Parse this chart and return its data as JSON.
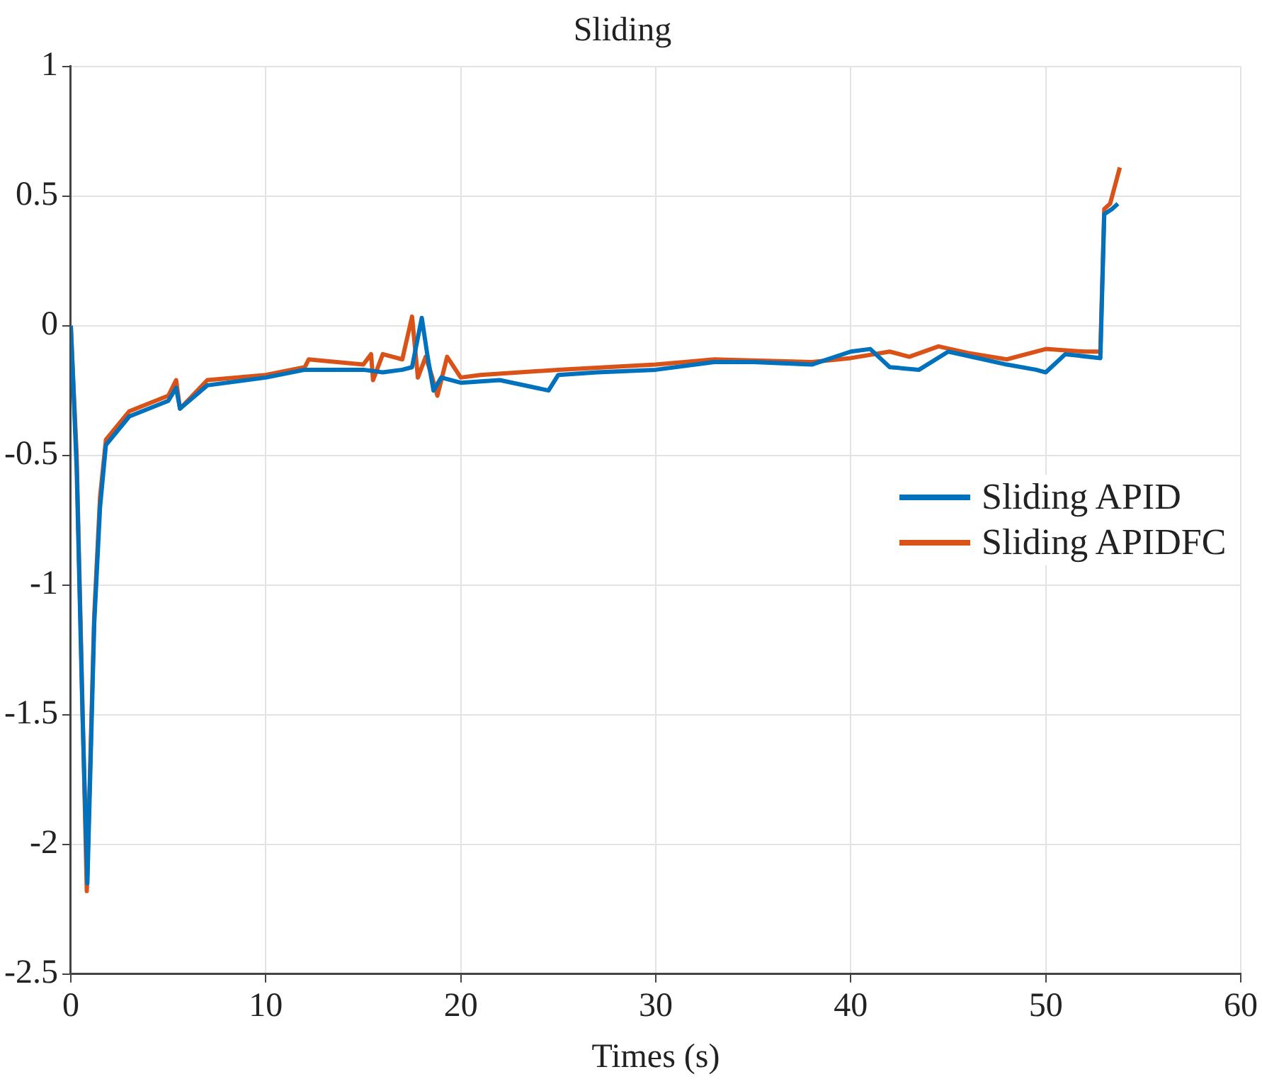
{
  "chart_data": {
    "type": "line",
    "title": "Sliding",
    "xlabel": "Times (s)",
    "xlim": [
      0,
      60
    ],
    "xticks": [
      0,
      10,
      20,
      30,
      40,
      50,
      60
    ],
    "ylim": [
      -2.5,
      1
    ],
    "yticks": [
      -2.5,
      -2,
      -1.5,
      -1,
      -0.5,
      0,
      0.5,
      1
    ],
    "grid": true,
    "legend": "right",
    "marker": "none",
    "line_style": "solid",
    "series": [
      {
        "name": "Sliding APID",
        "color": "#0072bd",
        "x": [
          0,
          0.3,
          0.6,
          0.85,
          1.2,
          1.5,
          1.8,
          3,
          5,
          5.4,
          5.6,
          7,
          10,
          12,
          15,
          16,
          17,
          17.5,
          18,
          18.3,
          18.6,
          19,
          20,
          22,
          24.5,
          25,
          27,
          30,
          33,
          35,
          38,
          40,
          41,
          42,
          43.5,
          45,
          48,
          49.5,
          50,
          51,
          52.8,
          53,
          53.4,
          53.7
        ],
        "values": [
          0,
          -0.55,
          -1.5,
          -2.15,
          -1.15,
          -0.7,
          -0.46,
          -0.35,
          -0.29,
          -0.24,
          -0.32,
          -0.23,
          -0.2,
          -0.17,
          -0.17,
          -0.18,
          -0.17,
          -0.16,
          0.03,
          -0.12,
          -0.25,
          -0.2,
          -0.22,
          -0.21,
          -0.25,
          -0.19,
          -0.18,
          -0.17,
          -0.14,
          -0.14,
          -0.15,
          -0.1,
          -0.09,
          -0.16,
          -0.17,
          -0.1,
          -0.15,
          -0.17,
          -0.18,
          -0.11,
          -0.125,
          0.43,
          0.45,
          0.47
        ]
      },
      {
        "name": "Sliding APIDFC",
        "color": "#d95319",
        "x": [
          0,
          0.3,
          0.82,
          1.2,
          1.5,
          1.8,
          3,
          5,
          5.4,
          5.6,
          7,
          10,
          12,
          12.2,
          15,
          15.4,
          15.5,
          16,
          17,
          17.5,
          17.8,
          18.2,
          18.5,
          18.8,
          19.3,
          20,
          21,
          25,
          30,
          33,
          35,
          38,
          40,
          42,
          43,
          44.5,
          46,
          48,
          50,
          52,
          52.8,
          53,
          53.3,
          53.8
        ],
        "values": [
          0,
          -0.5,
          -2.18,
          -1.12,
          -0.66,
          -0.44,
          -0.33,
          -0.27,
          -0.21,
          -0.32,
          -0.21,
          -0.19,
          -0.16,
          -0.13,
          -0.15,
          -0.11,
          -0.21,
          -0.11,
          -0.13,
          0.035,
          -0.2,
          -0.12,
          -0.19,
          -0.27,
          -0.12,
          -0.2,
          -0.19,
          -0.17,
          -0.15,
          -0.13,
          -0.134,
          -0.14,
          -0.125,
          -0.1,
          -0.12,
          -0.08,
          -0.105,
          -0.13,
          -0.09,
          -0.1,
          -0.1,
          0.45,
          0.47,
          0.61
        ]
      }
    ]
  }
}
